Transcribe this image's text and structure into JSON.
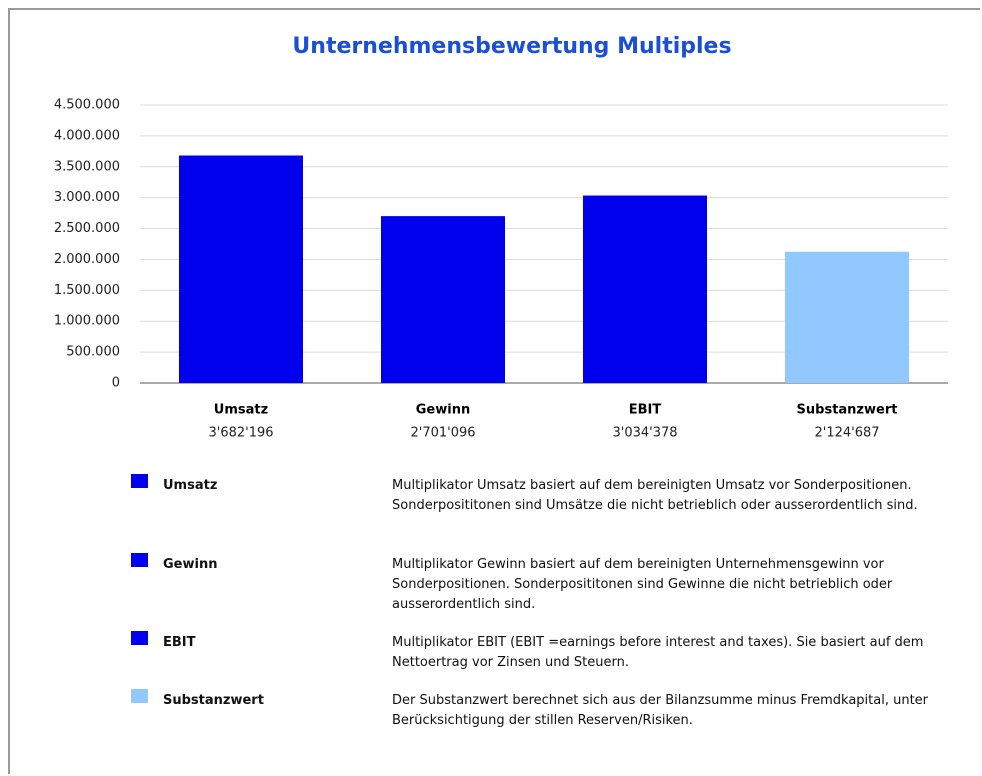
{
  "chart_data": {
    "type": "bar",
    "title": "Unternehmensbewertung Multiples",
    "categories": [
      "Umsatz",
      "Gewinn",
      "EBIT",
      "Substanzwert"
    ],
    "values": [
      3682196,
      2701096,
      3034378,
      2124687
    ],
    "value_labels": [
      "3'682'196",
      "2'701'096",
      "3'034'378",
      "2'124'687"
    ],
    "colors": [
      "#0000ee",
      "#0000ee",
      "#0000ee",
      "#90c8ff"
    ],
    "ylim": [
      0,
      4500000
    ],
    "yticks": [
      0,
      {
        "value": 500000,
        "label": "500.000"
      },
      {
        "value": 1000000,
        "label": "1.000.000"
      },
      {
        "value": 1500000,
        "label": "1.500.000"
      },
      {
        "value": 2000000,
        "label": "2.000.000"
      },
      {
        "value": 2500000,
        "label": "2.500.000"
      },
      {
        "value": 3000000,
        "label": "3.000.000"
      },
      {
        "value": 3500000,
        "label": "3.500.000"
      },
      {
        "value": 4000000,
        "label": "4.000.000"
      },
      {
        "value": 4500000,
        "label": "4.500.000"
      }
    ],
    "grid": true,
    "descriptions": [
      "Multiplikator Umsatz basiert auf dem bereinigten Umsatz vor Sonderpositionen. Sonderposititonen sind Umsätze die nicht betrieblich oder ausserordentlich sind.",
      "Multiplikator Gewinn basiert auf dem bereinigten Unternehmensgewinn vor Sonderpositionen. Sonderposititonen sind Gewinne die nicht betrieblich oder ausserordentlich sind.",
      "Multiplikator EBIT (EBIT =earnings before interest and taxes). Sie basiert auf dem Nettoertrag vor Zinsen und Steuern.",
      "Der Substanzwert berechnet sich aus der Bilanzsumme minus Fremdkapital, unter Berücksichtigung der stillen Reserven/Risiken."
    ]
  }
}
